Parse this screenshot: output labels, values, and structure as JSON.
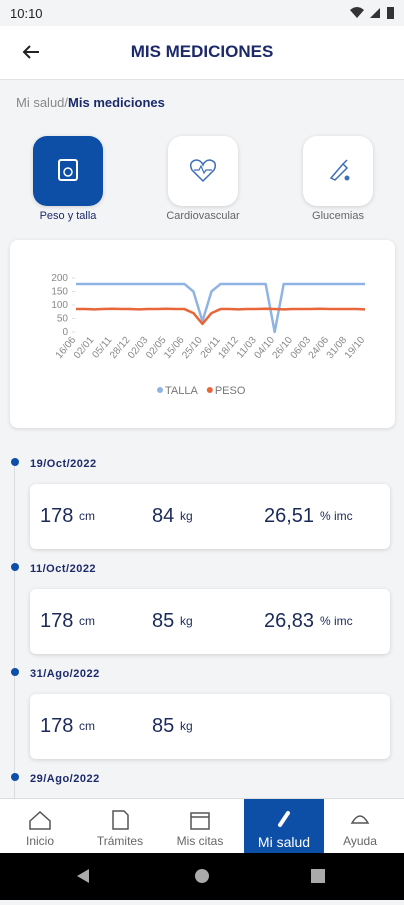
{
  "status": {
    "time": "10:10"
  },
  "header": {
    "title": "MIS MEDICIONES"
  },
  "breadcrumb": {
    "parent": "Mi salud/",
    "current": "Mis mediciones"
  },
  "tabs": [
    "Peso y talla",
    "Cardiovascular",
    "Glucemias"
  ],
  "chart_data": {
    "type": "line",
    "categories": [
      "16/06",
      null,
      "02/01",
      null,
      "05/11",
      null,
      "28/12",
      null,
      "02/03",
      null,
      "02/05",
      null,
      "15/06",
      null,
      "25/10",
      null,
      "26/11",
      null,
      "18/12",
      null,
      "11/03",
      null,
      "04/10",
      null,
      "26/10",
      null,
      "06/03",
      null,
      "24/06",
      null,
      "31/08",
      null,
      "19/10"
    ],
    "series": [
      {
        "name": "TALLA",
        "color": "#8fb4e3",
        "values": [
          178,
          178,
          178,
          178,
          178,
          178,
          178,
          178,
          178,
          178,
          178,
          178,
          178,
          150,
          40,
          150,
          178,
          178,
          178,
          178,
          178,
          178,
          0,
          178,
          178,
          178,
          178,
          178,
          178,
          178,
          178,
          178,
          178
        ]
      },
      {
        "name": "PESO",
        "color": "#e8663a",
        "values": [
          85,
          85,
          84,
          85,
          86,
          85,
          85,
          84,
          85,
          85,
          86,
          85,
          85,
          70,
          30,
          70,
          85,
          85,
          84,
          85,
          85,
          86,
          85,
          84,
          85,
          85,
          85,
          86,
          85,
          85,
          85,
          85,
          84
        ]
      }
    ],
    "ylim": [
      0,
      200
    ],
    "yticks": [
      0,
      50,
      100,
      150,
      200
    ],
    "grid": false
  },
  "records": [
    {
      "date": "19/Oct/2022",
      "height": 178,
      "height_unit": "cm",
      "weight": 84,
      "weight_unit": "kg",
      "imc": "26,51",
      "imc_unit": "% imc"
    },
    {
      "date": "11/Oct/2022",
      "height": 178,
      "height_unit": "cm",
      "weight": 85,
      "weight_unit": "kg",
      "imc": "26,83",
      "imc_unit": "% imc"
    },
    {
      "date": "31/Ago/2022",
      "height": 178,
      "height_unit": "cm",
      "weight": 85,
      "weight_unit": "kg"
    },
    {
      "date": "29/Ago/2022"
    }
  ],
  "nav": [
    "Inicio",
    "Trámites",
    "Mis citas",
    "Mi salud",
    "Ayuda"
  ]
}
